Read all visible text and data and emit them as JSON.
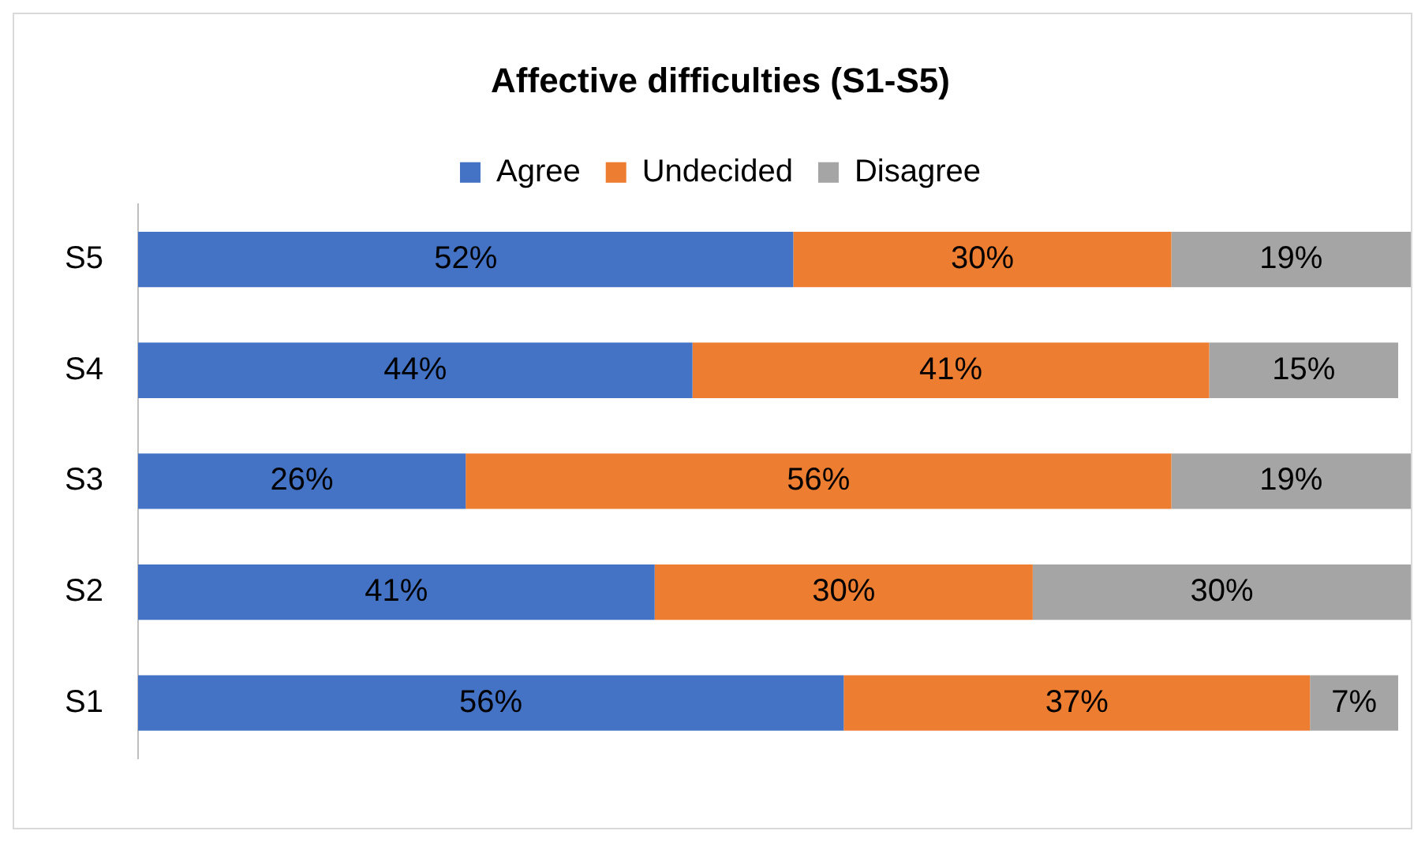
{
  "chart_data": {
    "type": "bar",
    "title": "Affective difficulties (S1-S5)",
    "orientation": "horizontal",
    "stacked": true,
    "legend": "top",
    "categories": [
      "S5",
      "S4",
      "S3",
      "S2",
      "S1"
    ],
    "series": [
      {
        "name": "Agree",
        "color": "#4472c4",
        "values": [
          52,
          44,
          26,
          41,
          56
        ],
        "value_labels": [
          "52%",
          "44%",
          "26%",
          "41%",
          "56%"
        ]
      },
      {
        "name": "Undecided",
        "color": "#ed7d31",
        "values": [
          30,
          41,
          56,
          30,
          37
        ],
        "value_labels": [
          "30%",
          "41%",
          "56%",
          "30%",
          "37%"
        ]
      },
      {
        "name": "Disagree",
        "color": "#a5a5a5",
        "values": [
          19,
          15,
          19,
          30,
          7
        ],
        "value_labels": [
          "19%",
          "15%",
          "19%",
          "30%",
          "7%"
        ]
      }
    ]
  }
}
